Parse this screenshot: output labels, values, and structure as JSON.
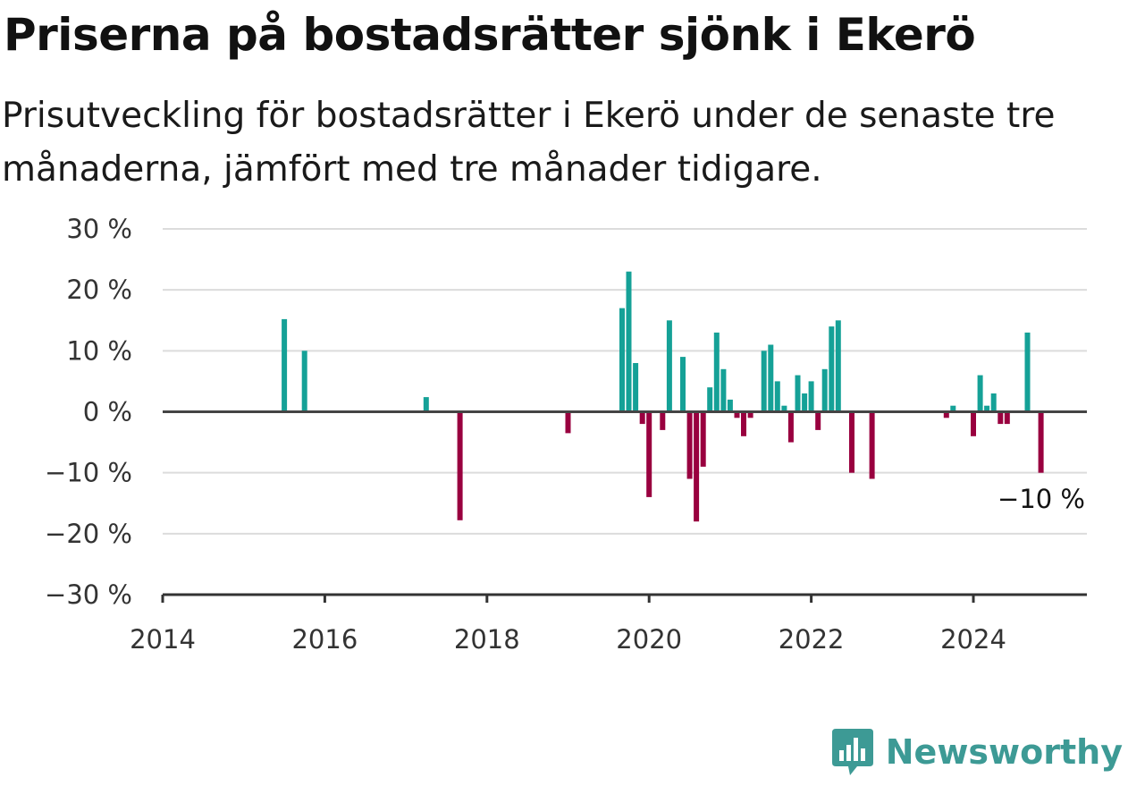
{
  "title": "Priserna på bostadsrätter sjönk i Ekerö",
  "subtitle": "Prisutveckling för bostadsrätter i Ekerö under de senaste tre månaderna, jämfört med tre månader tidigare.",
  "brand": {
    "name": "Newsworthy",
    "color": "#3d9a95"
  },
  "chart_data": {
    "type": "bar",
    "title": "Priserna på bostadsrätter sjönk i Ekerö",
    "xlabel": "",
    "ylabel": "",
    "ylim": [
      -30,
      30
    ],
    "xlim": [
      2014,
      2025.4
    ],
    "yticks": [
      30,
      20,
      10,
      0,
      -10,
      -20,
      -30
    ],
    "ytick_labels": [
      "30 %",
      "20 %",
      "10 %",
      "0 %",
      "−10 %",
      "−20 %",
      "−30 %"
    ],
    "xticks": [
      2014,
      2016,
      2018,
      2020,
      2022,
      2024
    ],
    "xtick_labels": [
      "2014",
      "2016",
      "2018",
      "2020",
      "2022",
      "2024"
    ],
    "grid": true,
    "positive_color": "#15a197",
    "negative_color": "#99003f",
    "annotation": "−10 %",
    "points": [
      {
        "x": "2015-07",
        "y": 15.2
      },
      {
        "x": "2015-10",
        "y": 10
      },
      {
        "x": "2017-04",
        "y": 2.4
      },
      {
        "x": "2017-09",
        "y": -17.8
      },
      {
        "x": "2019-01",
        "y": -3.5
      },
      {
        "x": "2019-09",
        "y": 17
      },
      {
        "x": "2019-10",
        "y": 23
      },
      {
        "x": "2019-11",
        "y": 8
      },
      {
        "x": "2019-12",
        "y": -2
      },
      {
        "x": "2020-01",
        "y": -14
      },
      {
        "x": "2020-03",
        "y": -3
      },
      {
        "x": "2020-04",
        "y": 15
      },
      {
        "x": "2020-06",
        "y": 9
      },
      {
        "x": "2020-07",
        "y": -11
      },
      {
        "x": "2020-08",
        "y": -18
      },
      {
        "x": "2020-09",
        "y": -9
      },
      {
        "x": "2020-10",
        "y": 4
      },
      {
        "x": "2020-11",
        "y": 13
      },
      {
        "x": "2020-12",
        "y": 7
      },
      {
        "x": "2021-01",
        "y": 2
      },
      {
        "x": "2021-02",
        "y": -1
      },
      {
        "x": "2021-03",
        "y": -4
      },
      {
        "x": "2021-04",
        "y": -1
      },
      {
        "x": "2021-06",
        "y": 10
      },
      {
        "x": "2021-07",
        "y": 11
      },
      {
        "x": "2021-08",
        "y": 5
      },
      {
        "x": "2021-09",
        "y": 1
      },
      {
        "x": "2021-10",
        "y": -5
      },
      {
        "x": "2021-11",
        "y": 6
      },
      {
        "x": "2021-12",
        "y": 3
      },
      {
        "x": "2022-01",
        "y": 5
      },
      {
        "x": "2022-02",
        "y": -3
      },
      {
        "x": "2022-03",
        "y": 7
      },
      {
        "x": "2022-04",
        "y": 14
      },
      {
        "x": "2022-05",
        "y": 15
      },
      {
        "x": "2022-07",
        "y": -10
      },
      {
        "x": "2022-10",
        "y": -11
      },
      {
        "x": "2023-09",
        "y": -1
      },
      {
        "x": "2023-10",
        "y": 1
      },
      {
        "x": "2024-01",
        "y": -4
      },
      {
        "x": "2024-02",
        "y": 6
      },
      {
        "x": "2024-03",
        "y": 1
      },
      {
        "x": "2024-04",
        "y": 3
      },
      {
        "x": "2024-05",
        "y": -2
      },
      {
        "x": "2024-06",
        "y": -2
      },
      {
        "x": "2024-09",
        "y": 13
      },
      {
        "x": "2024-11",
        "y": -10
      }
    ]
  }
}
